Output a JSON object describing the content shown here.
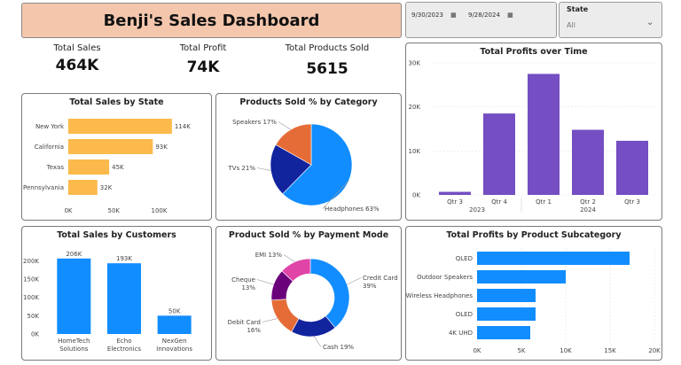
{
  "header": {
    "title": "Benji's Sales Dashboard"
  },
  "date_filter": {
    "start": "9/30/2023",
    "end": "9/28/2024"
  },
  "state_filter": {
    "label": "State",
    "value": "All"
  },
  "kpis": [
    {
      "label": "Total Sales",
      "value": "464K"
    },
    {
      "label": "Total Profit",
      "value": "74K"
    },
    {
      "label": "Total Products Sold",
      "value": "5615"
    }
  ],
  "colors": {
    "orange": "#fbba4b",
    "blue": "#118dff",
    "purple": "#744ec2",
    "navy": "#12239e",
    "coral": "#e66c37",
    "magenta": "#e044a7",
    "darkpurple": "#6b007b"
  },
  "chart_data": [
    {
      "id": "sales_by_state",
      "type": "bar",
      "orientation": "horizontal",
      "title": "Total Sales by State",
      "categories": [
        "New York",
        "California",
        "Texas",
        "Pennsylvania"
      ],
      "values": [
        114,
        93,
        45,
        32
      ],
      "data_labels": [
        "114K",
        "93K",
        "45K",
        "32K"
      ],
      "xticks": [
        "0K",
        "50K",
        "100K"
      ],
      "xlim": [
        0,
        120
      ]
    },
    {
      "id": "products_by_category",
      "type": "pie",
      "title": "Products Sold % by Category",
      "slices": [
        {
          "name": "Headphones",
          "value": 63,
          "label": "Headphones 63%"
        },
        {
          "name": "TVs",
          "value": 21,
          "label": "TVs 21%"
        },
        {
          "name": "Speakers",
          "value": 17,
          "label": "Speakers 17%"
        }
      ]
    },
    {
      "id": "profits_over_time",
      "type": "bar",
      "title": "Total Profits over Time",
      "categories": [
        "Qtr 3",
        "Qtr 4",
        "Qtr 1",
        "Qtr 2",
        "Qtr 3"
      ],
      "year_labels": [
        "2023",
        "2024"
      ],
      "values": [
        0.7,
        18.5,
        27.5,
        14.8,
        12.3
      ],
      "yticks": [
        "0K",
        "10K",
        "20K",
        "30K"
      ],
      "ylim": [
        0,
        30
      ]
    },
    {
      "id": "sales_by_customers",
      "type": "bar",
      "title": "Total Sales by Customers",
      "categories": [
        "HomeTech Solutions",
        "Echo Electronics",
        "NexGen Innovations"
      ],
      "category_lines": [
        [
          "HomeTech",
          "Solutions"
        ],
        [
          "Echo",
          "Electronics"
        ],
        [
          "NexGen",
          "Innovations"
        ]
      ],
      "values": [
        206,
        193,
        50
      ],
      "data_labels": [
        "206K",
        "193K",
        "50K"
      ],
      "yticks": [
        "0K",
        "50K",
        "100K",
        "150K",
        "200K"
      ],
      "ylim": [
        0,
        220
      ]
    },
    {
      "id": "payment_mode",
      "type": "pie",
      "donut": true,
      "title": "Product Sold % by Payment Mode",
      "slices": [
        {
          "name": "Credit Card",
          "value": 39,
          "label_lines": [
            "Credit Card",
            "39%"
          ]
        },
        {
          "name": "Cash",
          "value": 19,
          "label_lines": [
            "Cash 19%"
          ]
        },
        {
          "name": "Debit Card",
          "value": 16,
          "label_lines": [
            "Debit Card",
            "16%"
          ]
        },
        {
          "name": "Cheque",
          "value": 13,
          "label_lines": [
            "Cheque",
            "13%"
          ]
        },
        {
          "name": "EMI",
          "value": 13,
          "label_lines": [
            "EMI 13%"
          ]
        }
      ]
    },
    {
      "id": "profits_by_subcategory",
      "type": "bar",
      "orientation": "horizontal",
      "title": "Total Profits by Product Subcategory",
      "categories": [
        "QLED",
        "Outdoor Speakers",
        "Wireless Headphones",
        "OLED",
        "4K UHD"
      ],
      "values": [
        17.2,
        10.0,
        6.6,
        6.6,
        6.0
      ],
      "xticks": [
        "0K",
        "5K",
        "10K",
        "15K",
        "20K"
      ],
      "xlim": [
        0,
        20
      ]
    }
  ]
}
